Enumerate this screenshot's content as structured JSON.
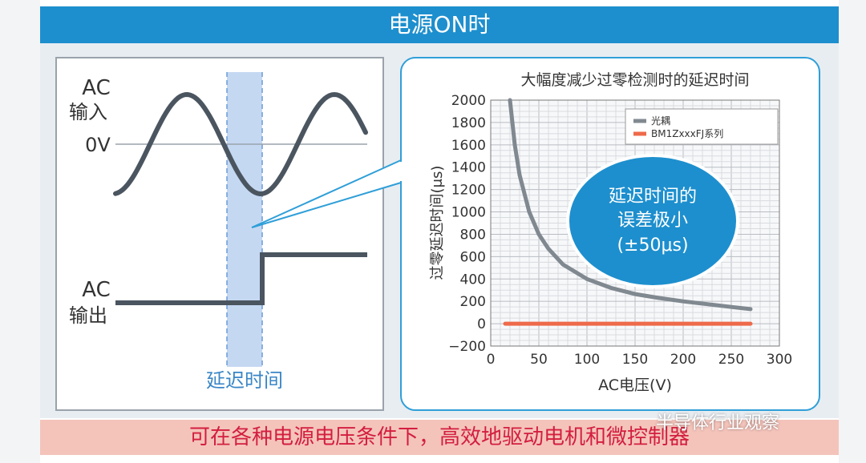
{
  "header": {
    "title": "电源ON时"
  },
  "footer": {
    "text": "可在各种电源电压条件下，高效地驱动电机和微控制器"
  },
  "watermark": {
    "text": "半导体行业观察"
  },
  "waveform": {
    "ac_input_label_line1": "AC",
    "ac_input_label_line2": "输入",
    "zero_label": "0V",
    "ac_output_label_line1": "AC",
    "ac_output_label_line2": "输出",
    "delay_label": "延迟时间"
  },
  "bubble": {
    "line1": "延迟时间的",
    "line2": "误差极小",
    "line3": "(±50μs)"
  },
  "colors": {
    "header": "#1d8fce",
    "footer_bg": "#f4c4bb",
    "footer_text": "#d31e3f",
    "series_optocoupler": "#808890",
    "series_bm1z": "#ee6a4a",
    "wave": "#4a5560",
    "delay_band": "#c5d8f2"
  },
  "chart_data": {
    "type": "line",
    "title": "大幅度减少过零检测时的延迟时间",
    "xlabel": "AC电压(V)",
    "ylabel": "过零延迟时间(μs)",
    "xlim": [
      0,
      300
    ],
    "ylim": [
      -200,
      2000
    ],
    "xticks": [
      "0",
      "50",
      "100",
      "150",
      "200",
      "250",
      "300"
    ],
    "yticks": [
      "2000",
      "1800",
      "1600",
      "1400",
      "1200",
      "1000",
      "800",
      "600",
      "400",
      "200",
      "0",
      "−200"
    ],
    "xtick_values": [
      0,
      50,
      100,
      150,
      200,
      250,
      300
    ],
    "ytick_values": [
      2000,
      1800,
      1600,
      1400,
      1200,
      1000,
      800,
      600,
      400,
      200,
      0,
      -200
    ],
    "grid": true,
    "legend_position": "top-right",
    "series": [
      {
        "name": "光耦",
        "x": [
          20,
          25,
          30,
          40,
          50,
          60,
          75,
          100,
          125,
          150,
          175,
          200,
          225,
          250,
          270
        ],
        "y": [
          2000,
          1600,
          1330,
          1000,
          800,
          670,
          530,
          400,
          320,
          265,
          230,
          200,
          175,
          150,
          130
        ]
      },
      {
        "name": "BM1ZxxxFJ系列",
        "x": [
          15,
          270
        ],
        "y": [
          0,
          0
        ]
      }
    ]
  }
}
